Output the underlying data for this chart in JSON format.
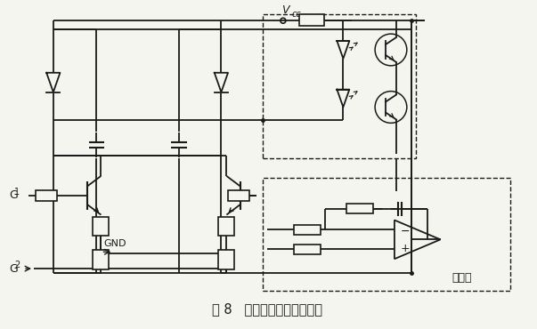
{
  "title": "图 8   过零点调整电路示意图",
  "vcc_label": "V",
  "vcc_sub": "cc",
  "g1_label": "G",
  "g1_sub": "1",
  "g2_label": "G",
  "g2_sub": "2",
  "gnd_label": "GND",
  "current_loop_label": "电流环",
  "bg_color": "#f5f5f0",
  "line_color": "#1a1a1a",
  "fig_width": 6.03,
  "fig_height": 3.7,
  "dpi": 100
}
